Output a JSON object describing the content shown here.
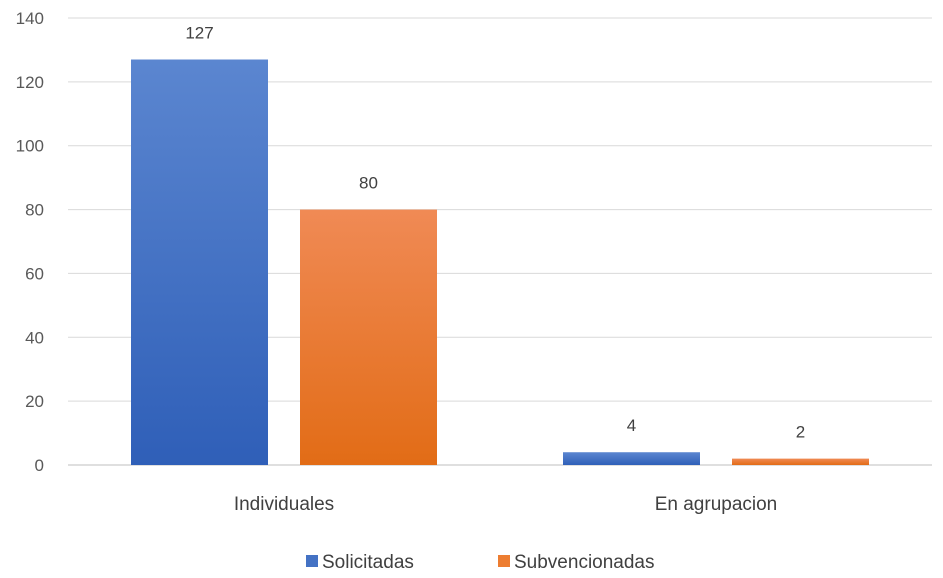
{
  "chart_data": {
    "type": "bar",
    "title": "",
    "xlabel": "",
    "ylabel": "",
    "categories": [
      "Individuales",
      "En agrupacion"
    ],
    "series": [
      {
        "name": "Solicitadas",
        "values": [
          127,
          4
        ],
        "color": "#4472C4"
      },
      {
        "name": "Subvencionadas",
        "values": [
          80,
          2
        ],
        "color": "#ED7D31"
      }
    ],
    "ylim": [
      0,
      140
    ],
    "yticks": [
      0,
      20,
      40,
      60,
      80,
      100,
      120,
      140
    ],
    "grid": true,
    "legend_position": "bottom",
    "data_labels": true
  }
}
